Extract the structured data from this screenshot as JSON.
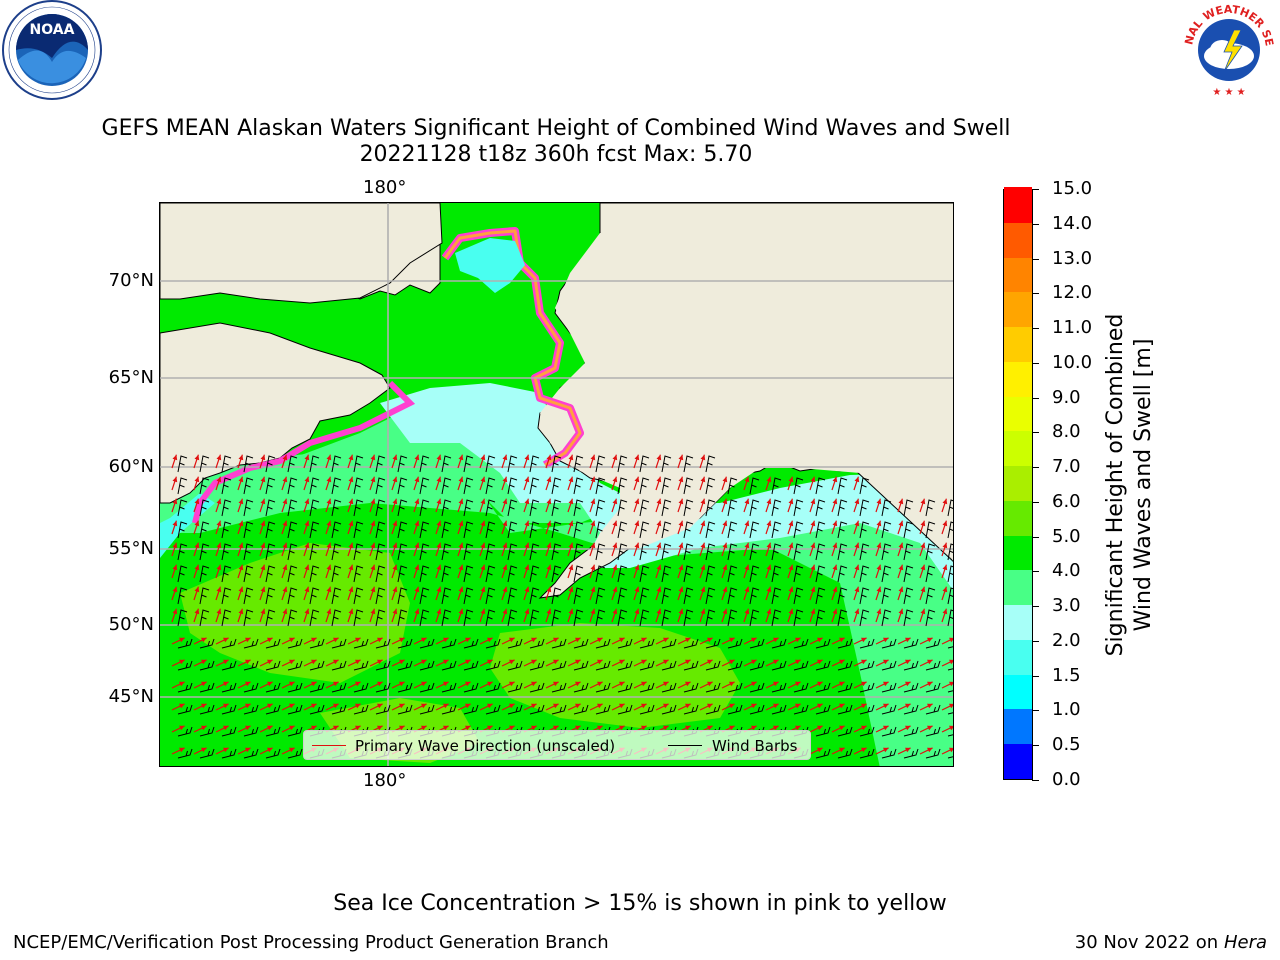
{
  "logos": {
    "left": {
      "name": "NOAA",
      "ring_text": "NATIONAL OCEANIC AND ATMOSPHERIC ADMINISTRATION · U.S. DEPARTMENT OF COMMERCE"
    },
    "right": {
      "name": "NATIONAL WEATHER SERVICE"
    }
  },
  "title": {
    "line1": "GEFS MEAN Alaskan Waters Significant Height of Combined Wind Waves and Swell",
    "line2": "20221128 t18z 360h fcst   Max: 5.70"
  },
  "map": {
    "lon_label_top": "180°",
    "lon_label_bottom": "180°",
    "lat_labels": [
      "70°N",
      "65°N",
      "60°N",
      "55°N",
      "50°N",
      "45°N"
    ],
    "land_color": "#efecdc",
    "gridline_color": "#b0b0b0",
    "legend": {
      "wave_label": "Primary Wave Direction (unscaled)",
      "wave_color": "#e01010",
      "wind_label": "Wind Barbs",
      "wind_color": "#000000"
    }
  },
  "colorbar": {
    "title_line1": "Significant Height of Combined",
    "title_line2": "Wind Waves and Swell [m]",
    "tick_labels": [
      "15.0",
      "14.0",
      "13.0",
      "12.0",
      "11.0",
      "10.0",
      "9.0",
      "8.0",
      "7.0",
      "6.0",
      "5.0",
      "4.0",
      "3.0",
      "2.0",
      "1.5",
      "1.0",
      "0.5",
      "0.0"
    ],
    "bin_colors_bottom_to_top": [
      "#0000ff",
      "#0077ff",
      "#00ffff",
      "#49fff0",
      "#a7fff8",
      "#48ff86",
      "#00ea00",
      "#66ea00",
      "#aaee00",
      "#ccff00",
      "#eaff00",
      "#fff000",
      "#ffcc00",
      "#ffa500",
      "#ff8400",
      "#ff5a00",
      "#ff0000"
    ]
  },
  "footer": {
    "note": "Sea Ice Concentration > 15% is shown in pink to yellow",
    "credit_left": "NCEP/EMC/Verification Post Processing Product Generation Branch",
    "credit_right_date": "30 Nov 2022 on",
    "credit_right_host": "Hera"
  }
}
